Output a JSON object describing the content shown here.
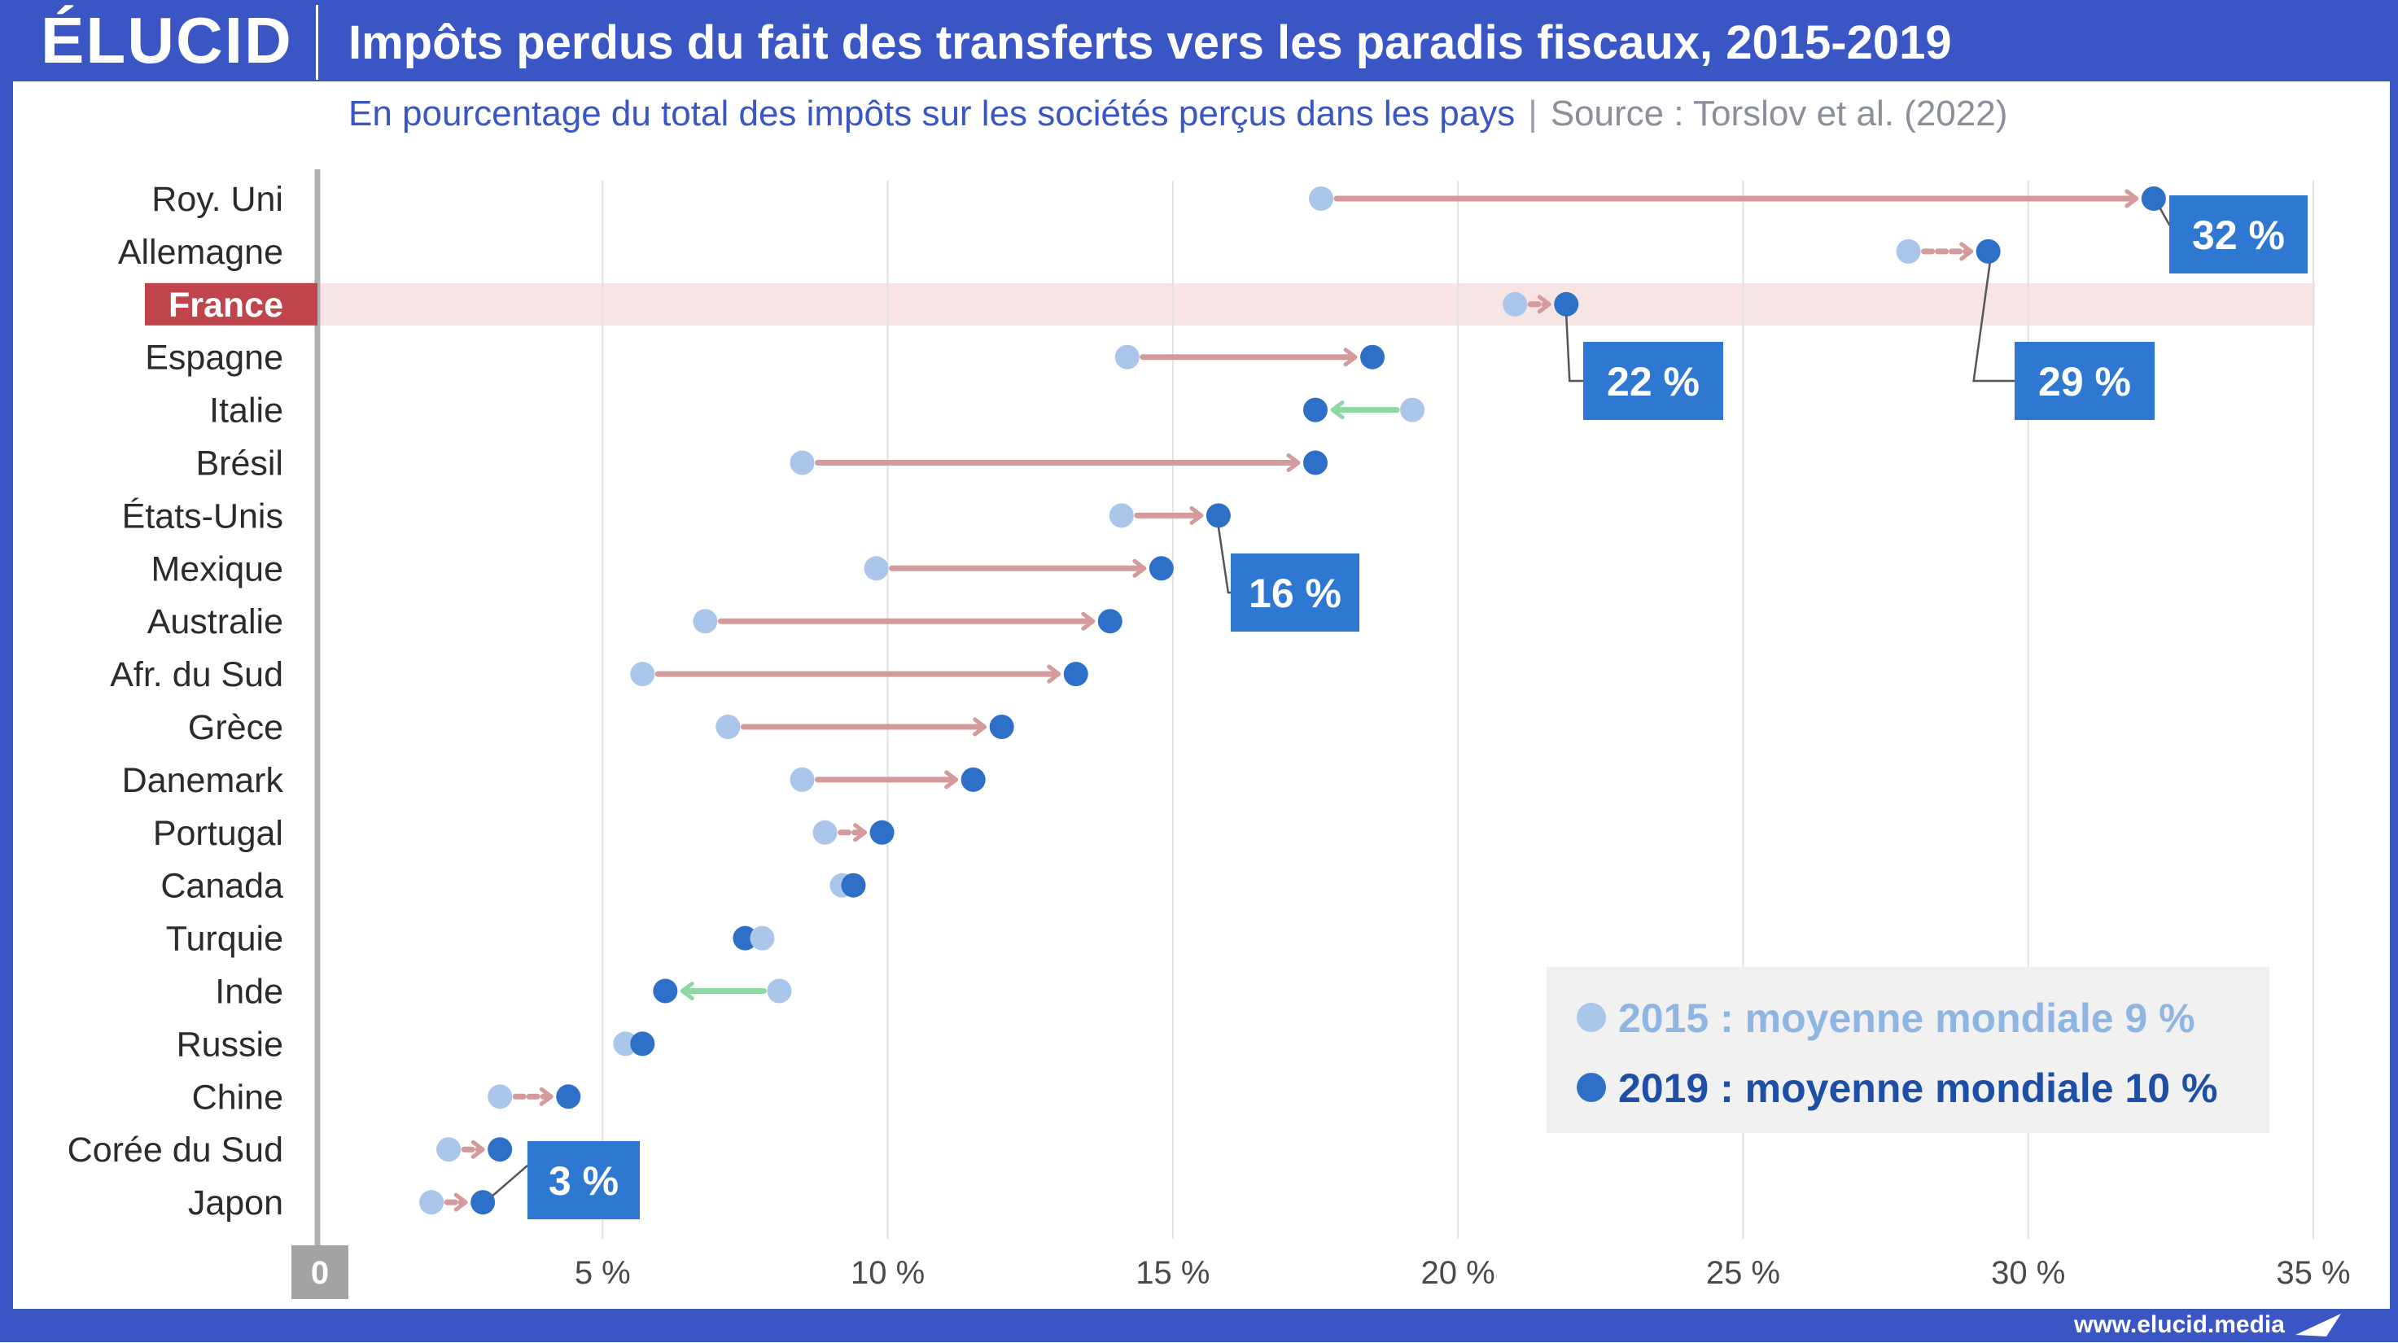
{
  "header": {
    "logo": "ÉLUCID",
    "title": "Impôts perdus du fait des transferts vers les paradis fiscaux, 2015-2019",
    "subtitle": "En pourcentage du total des impôts sur les sociétés perçus dans les pays",
    "separator": "|",
    "source": "Source : Torslov et al. (2022)"
  },
  "footer": {
    "website": "www.elucid.media"
  },
  "colors": {
    "frame": "#3a55c4",
    "dot2015": "#aac6ea",
    "dot2019": "#2e6fc8",
    "arrow_increase": "#d49a9c",
    "arrow_decrease": "#8fd8a4",
    "highlight_label": "#c0444c",
    "highlight_row": "#f7e4e5",
    "callout_box": "#2e78d2",
    "legend_bg": "#f1f1f1",
    "legend_2015_text": "#8fb5e3",
    "legend_2019_text": "#1d4fa6",
    "grid": "#e2e2e2",
    "axis": "#b0b0b0"
  },
  "chart_data": {
    "type": "dumbbell",
    "xlim": [
      0,
      35
    ],
    "x_ticks": [
      {
        "value": 0,
        "label": "0"
      },
      {
        "value": 5,
        "label": "5 %"
      },
      {
        "value": 10,
        "label": "10 %"
      },
      {
        "value": 15,
        "label": "15 %"
      },
      {
        "value": 20,
        "label": "20 %"
      },
      {
        "value": 25,
        "label": "25 %"
      },
      {
        "value": 30,
        "label": "30 %"
      },
      {
        "value": 35,
        "label": "35 %"
      }
    ],
    "highlight": "France",
    "series_names": [
      "2015",
      "2019"
    ],
    "countries": [
      {
        "name": "Roy. Uni",
        "v2015": 17.6,
        "v2019": 32.2
      },
      {
        "name": "Allemagne",
        "v2015": 27.9,
        "v2019": 29.3
      },
      {
        "name": "France",
        "v2015": 21.0,
        "v2019": 21.9
      },
      {
        "name": "Espagne",
        "v2015": 14.2,
        "v2019": 18.5
      },
      {
        "name": "Italie",
        "v2015": 19.2,
        "v2019": 17.5
      },
      {
        "name": "Brésil",
        "v2015": 8.5,
        "v2019": 17.5
      },
      {
        "name": "États-Unis",
        "v2015": 14.1,
        "v2019": 15.8
      },
      {
        "name": "Mexique",
        "v2015": 9.8,
        "v2019": 14.8
      },
      {
        "name": "Australie",
        "v2015": 6.8,
        "v2019": 13.9
      },
      {
        "name": "Afr. du Sud",
        "v2015": 5.7,
        "v2019": 13.3
      },
      {
        "name": "Grèce",
        "v2015": 7.2,
        "v2019": 12.0
      },
      {
        "name": "Danemark",
        "v2015": 8.5,
        "v2019": 11.5
      },
      {
        "name": "Portugal",
        "v2015": 8.9,
        "v2019": 9.9
      },
      {
        "name": "Canada",
        "v2015": 9.2,
        "v2019": 9.4
      },
      {
        "name": "Turquie",
        "v2015": 7.8,
        "v2019": 7.5
      },
      {
        "name": "Inde",
        "v2015": 8.1,
        "v2019": 6.1
      },
      {
        "name": "Russie",
        "v2015": 5.4,
        "v2019": 5.7
      },
      {
        "name": "Chine",
        "v2015": 3.2,
        "v2019": 4.4
      },
      {
        "name": "Corée du Sud",
        "v2015": 2.3,
        "v2019": 3.2
      },
      {
        "name": "Japon",
        "v2015": 2.0,
        "v2019": 2.9
      }
    ],
    "callouts": [
      {
        "country": "Roy. Uni",
        "label": "32 %"
      },
      {
        "country": "Allemagne",
        "label": "29 %"
      },
      {
        "country": "France",
        "label": "22 %"
      },
      {
        "country": "États-Unis",
        "label": "16 %"
      },
      {
        "country": "Japon",
        "label": "3 %"
      }
    ],
    "legend": {
      "position": "bottom-right",
      "items": [
        {
          "series": "2015",
          "label": "2015 : moyenne mondiale 9 %"
        },
        {
          "series": "2019",
          "label": "2019 : moyenne mondiale 10 %"
        }
      ]
    }
  }
}
